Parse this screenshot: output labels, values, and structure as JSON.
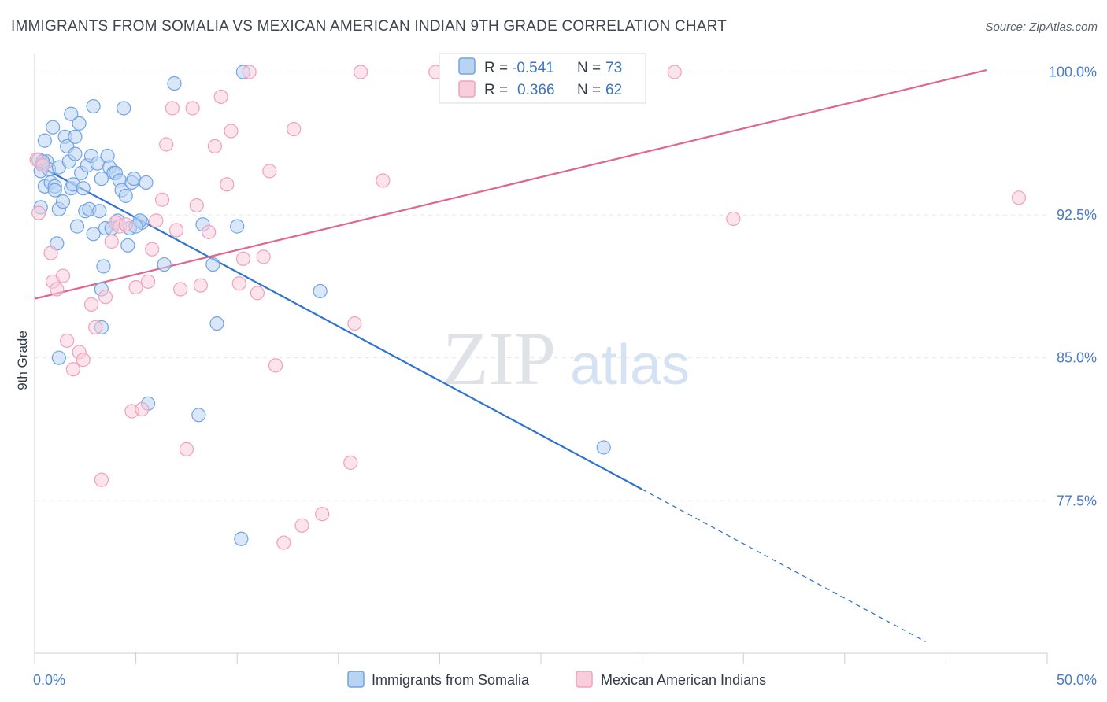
{
  "header": {
    "title": "IMMIGRANTS FROM SOMALIA VS MEXICAN AMERICAN INDIAN 9TH GRADE CORRELATION CHART",
    "source": "Source: ZipAtlas.com"
  },
  "watermark": {
    "zip": "ZIP",
    "atlas": "atlas"
  },
  "chart_data": {
    "type": "scatter",
    "title": "IMMIGRANTS FROM SOMALIA VS MEXICAN AMERICAN INDIAN 9TH GRADE CORRELATION CHART",
    "xlabel": "",
    "ylabel": "9th Grade",
    "xlim": [
      0,
      50
    ],
    "ylim": [
      69.5,
      101.3
    ],
    "x_tick_labels": [
      {
        "value": 0,
        "label": "0.0%"
      },
      {
        "value": 50,
        "label": "50.0%"
      }
    ],
    "y_tick_labels": [
      {
        "value": 100,
        "label": "100.0%"
      },
      {
        "value": 92.5,
        "label": "92.5%"
      },
      {
        "value": 85,
        "label": "85.0%"
      },
      {
        "value": 77.5,
        "label": "77.5%"
      }
    ],
    "grid": true,
    "legend_position": "bottom-center",
    "series": [
      {
        "name": "Immigrants from Somalia",
        "color": "#6fa3e6",
        "fill": "#b9d3f3",
        "stats": {
          "r_label": "R =",
          "r": "-0.541",
          "n_label": "N =",
          "n": "73"
        },
        "trend": {
          "x0": 0,
          "y0": 95.2,
          "x1": 30,
          "y1": 78.1,
          "dash_to_x": 44,
          "dash_to_y": 70.1,
          "color": "#2f74d0"
        },
        "points": [
          [
            0.2,
            95.4
          ],
          [
            0.3,
            94.8
          ],
          [
            0.4,
            95.2
          ],
          [
            0.5,
            96.4
          ],
          [
            0.6,
            95.3
          ],
          [
            0.3,
            92.9
          ],
          [
            0.5,
            94.0
          ],
          [
            0.7,
            94.9
          ],
          [
            0.8,
            94.2
          ],
          [
            0.9,
            97.1
          ],
          [
            1.0,
            94.0
          ],
          [
            1.0,
            93.8
          ],
          [
            1.1,
            91.0
          ],
          [
            1.2,
            92.8
          ],
          [
            1.2,
            95.0
          ],
          [
            1.4,
            93.2
          ],
          [
            1.5,
            96.6
          ],
          [
            1.6,
            96.1
          ],
          [
            1.7,
            95.3
          ],
          [
            1.8,
            97.8
          ],
          [
            1.8,
            93.9
          ],
          [
            1.9,
            94.1
          ],
          [
            2.0,
            96.6
          ],
          [
            2.0,
            95.7
          ],
          [
            2.1,
            91.9
          ],
          [
            2.2,
            97.3
          ],
          [
            2.3,
            94.7
          ],
          [
            2.4,
            93.9
          ],
          [
            2.5,
            92.7
          ],
          [
            2.6,
            95.1
          ],
          [
            2.7,
            92.8
          ],
          [
            2.8,
            95.6
          ],
          [
            2.9,
            91.5
          ],
          [
            2.9,
            98.2
          ],
          [
            3.1,
            95.2
          ],
          [
            3.2,
            92.7
          ],
          [
            3.3,
            94.4
          ],
          [
            3.3,
            86.6
          ],
          [
            3.4,
            89.8
          ],
          [
            3.5,
            91.8
          ],
          [
            3.6,
            95.6
          ],
          [
            3.7,
            95.0
          ],
          [
            3.8,
            91.8
          ],
          [
            3.9,
            94.7
          ],
          [
            4.0,
            94.7
          ],
          [
            4.1,
            92.2
          ],
          [
            4.2,
            94.3
          ],
          [
            4.3,
            93.8
          ],
          [
            4.4,
            98.1
          ],
          [
            4.5,
            93.5
          ],
          [
            4.6,
            90.9
          ],
          [
            4.8,
            94.2
          ],
          [
            4.9,
            94.4
          ],
          [
            5.3,
            92.1
          ],
          [
            5.5,
            94.2
          ],
          [
            5.6,
            82.6
          ],
          [
            5.2,
            92.2
          ],
          [
            4.7,
            91.8
          ],
          [
            5.0,
            91.9
          ],
          [
            6.4,
            89.9
          ],
          [
            6.9,
            99.4
          ],
          [
            8.1,
            82.0
          ],
          [
            8.3,
            92.0
          ],
          [
            8.8,
            89.9
          ],
          [
            9.0,
            86.8
          ],
          [
            10.0,
            91.9
          ],
          [
            10.2,
            75.5
          ],
          [
            10.3,
            100.0
          ],
          [
            14.1,
            88.5
          ],
          [
            28.1,
            80.3
          ],
          [
            3.3,
            88.6
          ],
          [
            1.2,
            85.0
          ],
          [
            0.4,
            95.3
          ]
        ]
      },
      {
        "name": "Mexican American Indians",
        "color": "#f1a0ba",
        "fill": "#f8cedc",
        "stats": {
          "r_label": "R =",
          "r": "0.366",
          "n_label": "N =",
          "n": "62"
        },
        "trend": {
          "x0": 0,
          "y0": 88.1,
          "x1": 47,
          "y1": 100.1,
          "color": "#e0658f"
        },
        "points": [
          [
            0.1,
            95.4
          ],
          [
            0.2,
            92.6
          ],
          [
            0.4,
            95.1
          ],
          [
            0.8,
            90.5
          ],
          [
            0.9,
            89.0
          ],
          [
            1.1,
            88.6
          ],
          [
            1.4,
            89.3
          ],
          [
            1.6,
            85.9
          ],
          [
            1.9,
            84.4
          ],
          [
            2.2,
            85.3
          ],
          [
            2.4,
            84.9
          ],
          [
            2.8,
            87.8
          ],
          [
            3.0,
            86.6
          ],
          [
            3.3,
            78.6
          ],
          [
            3.5,
            88.2
          ],
          [
            3.8,
            91.1
          ],
          [
            4.0,
            92.1
          ],
          [
            4.2,
            91.9
          ],
          [
            4.5,
            92.0
          ],
          [
            4.8,
            82.2
          ],
          [
            5.0,
            88.7
          ],
          [
            5.3,
            82.3
          ],
          [
            5.6,
            89.0
          ],
          [
            5.8,
            90.7
          ],
          [
            6.0,
            92.2
          ],
          [
            6.3,
            93.3
          ],
          [
            6.5,
            96.2
          ],
          [
            6.8,
            98.1
          ],
          [
            7.0,
            91.7
          ],
          [
            7.2,
            88.6
          ],
          [
            7.5,
            80.2
          ],
          [
            7.8,
            98.1
          ],
          [
            8.0,
            93.0
          ],
          [
            8.2,
            88.8
          ],
          [
            8.6,
            91.6
          ],
          [
            8.9,
            96.1
          ],
          [
            9.2,
            98.7
          ],
          [
            9.5,
            94.1
          ],
          [
            9.7,
            96.9
          ],
          [
            10.1,
            88.9
          ],
          [
            10.3,
            90.2
          ],
          [
            10.6,
            100.0
          ],
          [
            11.0,
            88.4
          ],
          [
            11.3,
            90.3
          ],
          [
            11.6,
            94.8
          ],
          [
            11.9,
            84.6
          ],
          [
            12.3,
            75.3
          ],
          [
            12.8,
            97.0
          ],
          [
            13.2,
            76.2
          ],
          [
            14.2,
            76.8
          ],
          [
            15.6,
            79.5
          ],
          [
            15.8,
            86.8
          ],
          [
            16.1,
            100.0
          ],
          [
            17.2,
            94.3
          ],
          [
            19.8,
            100.0
          ],
          [
            21.6,
            100.0
          ],
          [
            22.0,
            100.0
          ],
          [
            24.8,
            100.0
          ],
          [
            27.5,
            100.0
          ],
          [
            31.6,
            100.0
          ],
          [
            34.5,
            92.3
          ],
          [
            48.6,
            93.4
          ]
        ]
      }
    ]
  }
}
